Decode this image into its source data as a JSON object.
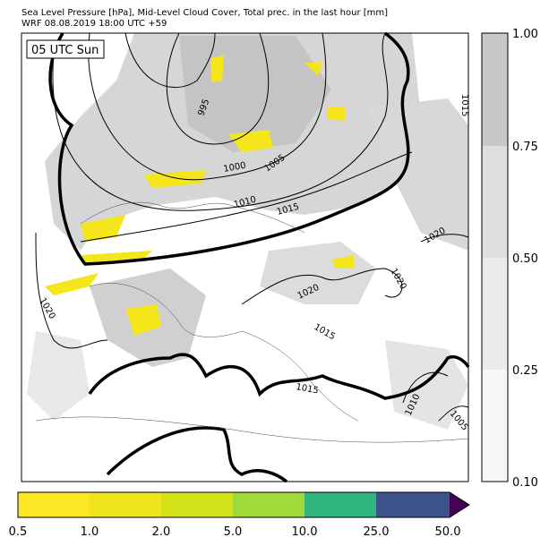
{
  "header": {
    "line1": "Sea Level Pressure [hPa], Mid-Level Cloud Cover, Total prec. in the last hour [mm]",
    "line2": "WRF 08.08.2019 18:00 UTC +59"
  },
  "map": {
    "time_label": "05 UTC Sun",
    "contour_labels": [
      "995",
      "1000",
      "1005",
      "1010",
      "1015",
      "1020",
      "1020",
      "1020",
      "1020",
      "1015",
      "1015",
      "1010",
      "1005",
      "1015"
    ]
  },
  "cloud_colorbar": {
    "ticks": [
      "0.10",
      "0.25",
      "0.50",
      "0.75",
      "1.00"
    ]
  },
  "precip_colorbar": {
    "ticks": [
      "0.5",
      "1.0",
      "2.0",
      "5.0",
      "10.0",
      "25.0",
      "50.0"
    ]
  }
}
